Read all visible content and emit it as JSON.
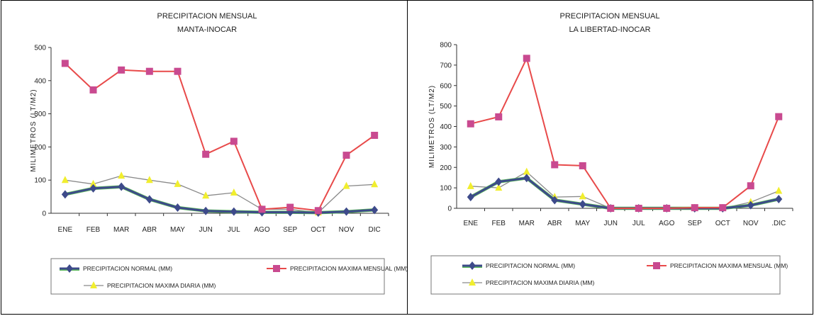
{
  "colors": {
    "normal": "#3d4a8a",
    "mensual": "#e84a4a",
    "mensual_marker": "#c94a90",
    "diaria": "#f1ee2e",
    "line_gray": "#8a8a8a",
    "line_green": "#5bb85b"
  },
  "chart_data": [
    {
      "type": "line",
      "title": "PRECIPITACION MENSUAL",
      "subtitle": "MANTA-INOCAR",
      "ylabel": "MILIMETROS (LT/M2)",
      "xlabel": "",
      "categories": [
        "ENE",
        "FEB",
        "MAR",
        "ABR",
        "MAY",
        "JUN",
        "JUL",
        "AGO",
        "SEP",
        "OCT",
        "NOV",
        "DIC"
      ],
      "ylim": [
        0,
        500
      ],
      "yticks": [
        0,
        100,
        200,
        300,
        400,
        500
      ],
      "grid": false,
      "legend_position": "bottom",
      "series": [
        {
          "name": "PRECIPITACION NORMAL (MM)",
          "values": [
            57,
            75,
            80,
            42,
            17,
            7,
            5,
            3,
            3,
            2,
            5,
            10
          ]
        },
        {
          "name": "PRECIPITACION MAXIMA MENSUAL (MM)",
          "values": [
            452,
            372,
            432,
            428,
            428,
            178,
            217,
            12,
            18,
            8,
            175,
            235
          ]
        },
        {
          "name": "PRECIPITACION MAXIMA DIARIA (MM)",
          "values": [
            100,
            88,
            113,
            100,
            88,
            53,
            62,
            12,
            12,
            2,
            82,
            87
          ]
        }
      ]
    },
    {
      "type": "line",
      "title": "PRECIPITACION MENSUAL",
      "subtitle": "LA LIBERTAD-INOCAR",
      "ylabel": "MILIMETROS (LT/M2)",
      "xlabel": "",
      "categories": [
        "ENE",
        "FEB",
        "MAR",
        "ABR",
        "MAY",
        "JUN",
        "JUL",
        "AGO",
        "SEP",
        "OCT",
        "NOV",
        ".DIC"
      ],
      "ylim": [
        0,
        800
      ],
      "yticks": [
        0,
        100,
        200,
        300,
        400,
        500,
        600,
        700,
        800
      ],
      "grid": false,
      "legend_position": "bottom",
      "series": [
        {
          "name": "PRECIPITACION NORMAL (MM)",
          "values": [
            55,
            130,
            148,
            40,
            20,
            0,
            0,
            0,
            0,
            0,
            15,
            45
          ]
        },
        {
          "name": "PRECIPITACION MAXIMA MENSUAL (MM)",
          "values": [
            413,
            447,
            733,
            213,
            208,
            0,
            0,
            0,
            3,
            3,
            110,
            448
          ]
        },
        {
          "name": "PRECIPITACION MAXIMA DIARIA (MM)",
          "values": [
            108,
            100,
            178,
            55,
            58,
            0,
            0,
            0,
            0,
            0,
            30,
            85
          ]
        }
      ]
    }
  ]
}
